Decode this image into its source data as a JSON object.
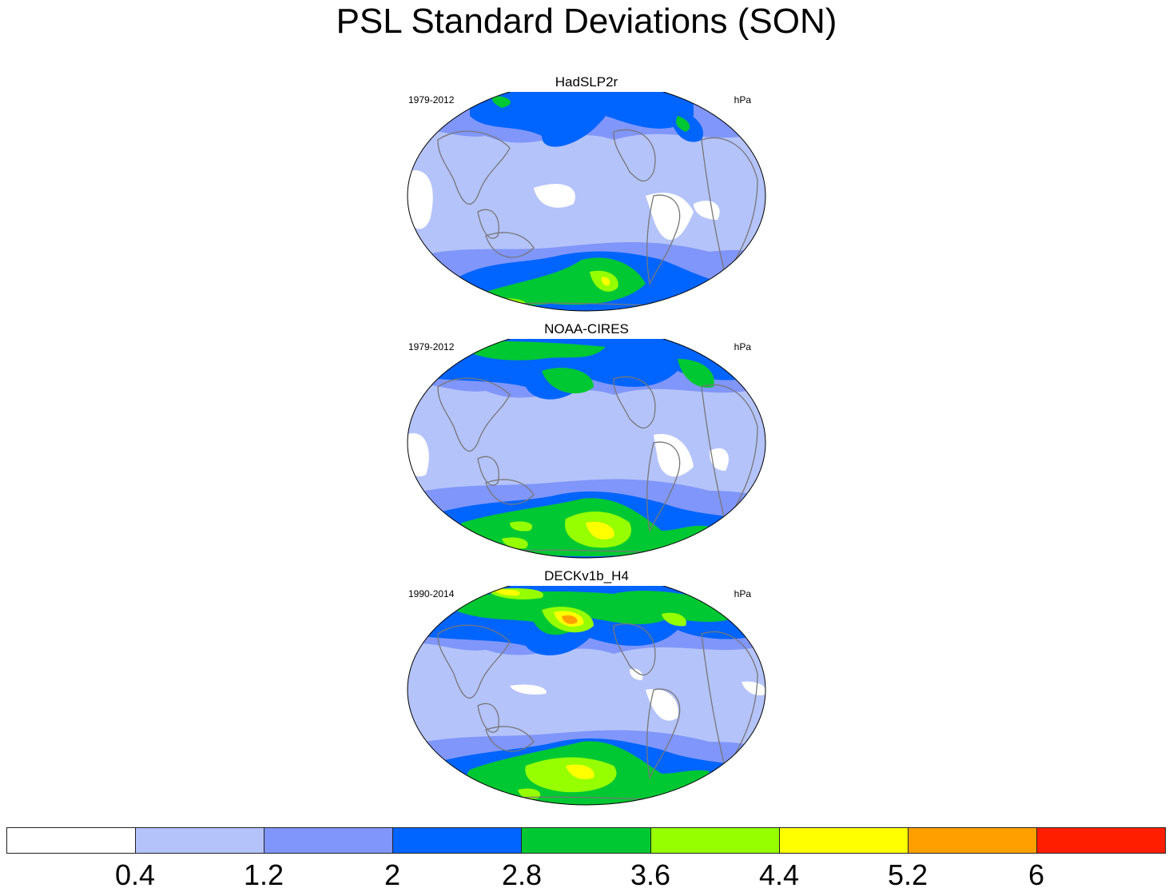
{
  "title": "PSL Standard Deviations (SON)",
  "panels": [
    {
      "name": "HadSLP2r",
      "period": "1979-2012",
      "units": "hPa"
    },
    {
      "name": "NOAA-CIRES",
      "period": "1979-2012",
      "units": "hPa"
    },
    {
      "name": "DECKv1b_H4",
      "period": "1990-2014",
      "units": "hPa"
    }
  ],
  "colorbar": {
    "labels": [
      "0.4",
      "1.2",
      "2",
      "2.8",
      "3.6",
      "4.4",
      "5.2",
      "6"
    ],
    "colors": [
      "#ffffff",
      "#b4c3fa",
      "#8096fa",
      "#0064ff",
      "#00c832",
      "#96ff00",
      "#ffff00",
      "#ffa000",
      "#ff1e00"
    ]
  }
}
